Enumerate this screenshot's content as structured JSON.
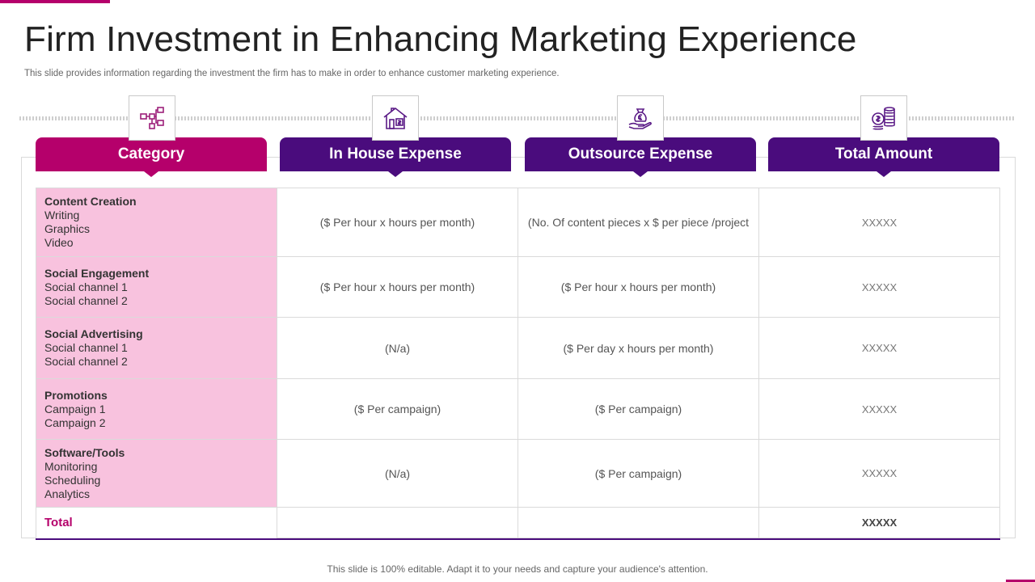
{
  "slide": {
    "title": "Firm Investment in Enhancing Marketing Experience",
    "subtitle": "This slide provides information regarding the investment the firm has to make in order to enhance customer marketing experience.",
    "footer": "This slide is 100% editable. Adapt it to your needs and capture your audience's attention."
  },
  "colors": {
    "accent_pink": "#b5006b",
    "accent_purple": "#4a0c7d",
    "category_bg": "#f8c2de"
  },
  "columns": [
    {
      "label": "Category",
      "icon": "flowchart-icon"
    },
    {
      "label": "In House Expense",
      "icon": "house-money-icon"
    },
    {
      "label": "Outsource Expense",
      "icon": "hand-euro-bag-icon"
    },
    {
      "label": "Total  Amount",
      "icon": "coins-stack-icon"
    }
  ],
  "rows": [
    {
      "title": "Content Creation",
      "items": [
        "Writing",
        "Graphics",
        "Video"
      ],
      "in_house": "($ Per hour x hours per month)",
      "outsource": "(No. Of content pieces x $ per piece /project",
      "total": "XXXXX"
    },
    {
      "title": "Social Engagement",
      "items": [
        "Social channel 1",
        "Social channel 2"
      ],
      "in_house": "($ Per hour x hours per month)",
      "outsource": "($ Per hour x hours per month)",
      "total": "XXXXX"
    },
    {
      "title": "Social Advertising",
      "items": [
        "Social channel 1",
        "Social channel 2"
      ],
      "in_house": "(N/a)",
      "outsource": "($ Per day x hours per month)",
      "total": "XXXXX"
    },
    {
      "title": "Promotions",
      "items": [
        "Campaign 1",
        "Campaign 2"
      ],
      "in_house": "($ Per campaign)",
      "outsource": "($ Per campaign)",
      "total": "XXXXX"
    },
    {
      "title": "Software/Tools",
      "items": [
        "Monitoring",
        "Scheduling",
        "Analytics"
      ],
      "in_house": "(N/a)",
      "outsource": "($ Per campaign)",
      "total": "XXXXX"
    }
  ],
  "total_row": {
    "label": "Total",
    "amount": "XXXXX"
  }
}
